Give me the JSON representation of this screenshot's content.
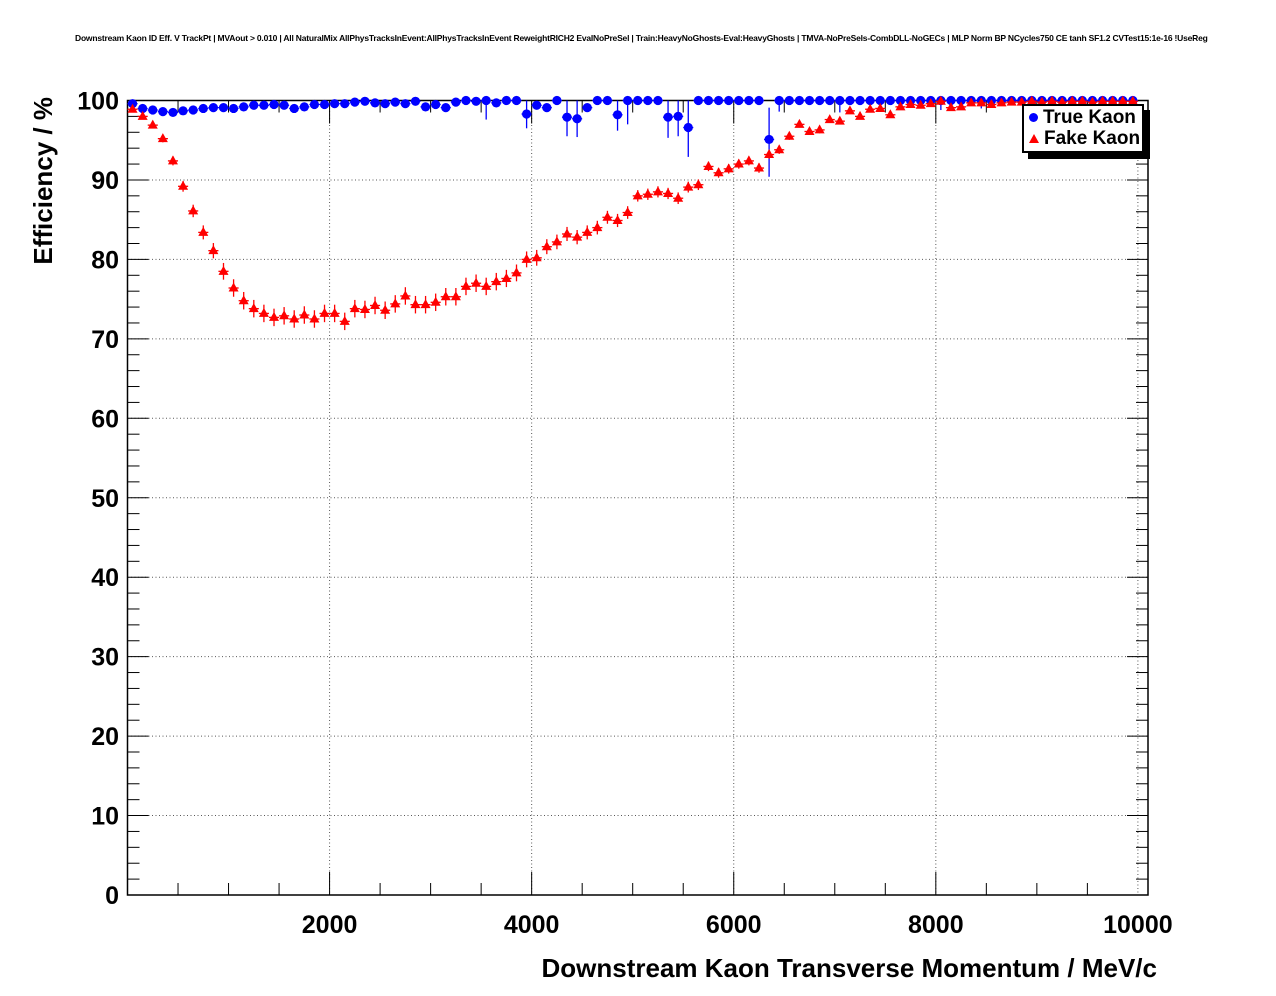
{
  "header": {
    "title": "Downstream Kaon ID Eff. V TrackPt | MVAout > 0.010 | All NaturalMix AllPhysTracksInEvent:AllPhysTracksInEvent ReweightRICH2 EvalNoPreSel | Train:HeavyNoGhosts-Eval:HeavyGhosts | TMVA-NoPreSels-CombDLL-NoGECs | MLP Norm BP NCycles750 CE tanh SF1.2 CVTest15:1e-16 !UseReg"
  },
  "chart_data": {
    "type": "scatter",
    "title": "",
    "xlabel": "Downstream Kaon Transverse Momentum / MeV/c",
    "ylabel": "Efficiency / %",
    "grid": true,
    "legend_position": "top-right",
    "x_axis": {
      "range": [
        0,
        10100
      ],
      "minor_step": 500,
      "major_ticks": [
        {
          "value": 2000,
          "label": "2000"
        },
        {
          "value": 4000,
          "label": "4000"
        },
        {
          "value": 6000,
          "label": "6000"
        },
        {
          "value": 8000,
          "label": "8000"
        },
        {
          "value": 10000,
          "label": "10000"
        }
      ]
    },
    "y_axis": {
      "range": [
        0,
        100
      ],
      "minor_step": 2,
      "major_ticks": [
        {
          "value": 0,
          "label": "0"
        },
        {
          "value": 10,
          "label": "10"
        },
        {
          "value": 20,
          "label": "20"
        },
        {
          "value": 30,
          "label": "30"
        },
        {
          "value": 40,
          "label": "40"
        },
        {
          "value": 50,
          "label": "50"
        },
        {
          "value": 60,
          "label": "60"
        },
        {
          "value": 70,
          "label": "70"
        },
        {
          "value": 80,
          "label": "80"
        },
        {
          "value": 90,
          "label": "90"
        },
        {
          "value": 100,
          "label": "100"
        }
      ]
    },
    "x_start": 50,
    "x_step": 100,
    "x_half_bin_width": 50,
    "series": [
      {
        "name": "True Kaon",
        "marker": "filled-circle",
        "color": "#0000ff",
        "err_model": {
          "type": "const",
          "value": 0.35
        },
        "values": [
          99.6,
          99.0,
          98.8,
          98.6,
          98.5,
          98.7,
          98.8,
          99.0,
          99.1,
          99.1,
          99.0,
          99.2,
          99.4,
          99.4,
          99.5,
          99.4,
          99.0,
          99.2,
          99.5,
          99.5,
          99.6,
          99.6,
          99.8,
          99.9,
          99.7,
          99.6,
          99.8,
          99.6,
          99.9,
          99.2,
          99.5,
          99.1,
          99.8,
          100.0,
          99.9,
          100.0,
          99.7,
          100.0,
          100.0,
          98.3,
          99.4,
          99.1,
          100.0,
          97.9,
          97.7,
          99.1,
          100.0,
          100.0,
          98.2,
          100.0,
          100.0,
          100.0,
          100.0,
          97.9,
          98.0,
          96.6,
          100.0,
          100.0,
          100.0,
          100.0,
          100.0,
          100.0,
          100.0,
          95.1,
          100.0,
          100.0,
          100.0,
          100.0,
          100.0,
          100.0,
          100.0,
          100.0,
          100.0,
          100.0,
          100.0,
          100.0,
          100.0,
          100.0,
          100.0,
          100.0,
          100.0,
          100.0,
          100.0,
          100.0,
          100.0,
          100.0,
          100.0,
          100.0,
          100.0,
          100.0,
          100.0,
          100.0,
          100.0,
          100.0,
          100.0,
          100.0,
          100.0,
          100.0,
          100.0,
          100.0
        ],
        "error_bars": [
          {
            "x": 3550,
            "lo": 97.6,
            "hi": 100
          },
          {
            "x": 3950,
            "lo": 96.5,
            "hi": 100
          },
          {
            "x": 4350,
            "lo": 95.5,
            "hi": 100
          },
          {
            "x": 4450,
            "lo": 95.4,
            "hi": 100
          },
          {
            "x": 4850,
            "lo": 96.2,
            "hi": 100
          },
          {
            "x": 4950,
            "lo": 97.0,
            "hi": 100
          },
          {
            "x": 5350,
            "lo": 95.3,
            "hi": 100
          },
          {
            "x": 5450,
            "lo": 95.5,
            "hi": 100
          },
          {
            "x": 5550,
            "lo": 92.9,
            "hi": 100
          },
          {
            "x": 6350,
            "lo": 90.4,
            "hi": 99.1
          },
          {
            "x": 6450,
            "lo": 98.6,
            "hi": 100
          },
          {
            "x": 7050,
            "lo": 98.5,
            "hi": 100
          },
          {
            "x": 8050,
            "lo": 98.8,
            "hi": 100
          },
          {
            "x": 8450,
            "lo": 99.0,
            "hi": 100
          }
        ]
      },
      {
        "name": "Fake Kaon",
        "marker": "filled-triangle",
        "color": "#ff0000",
        "err_model": {
          "type": "scaled",
          "base": 0.3,
          "slope": 0.035,
          "cap": 1.1
        },
        "values": [
          98.9,
          98.0,
          96.9,
          95.2,
          92.4,
          89.2,
          86.1,
          83.4,
          81.1,
          78.5,
          76.4,
          74.8,
          73.8,
          73.2,
          72.7,
          72.9,
          72.5,
          73.0,
          72.5,
          73.2,
          73.2,
          72.2,
          73.8,
          73.7,
          74.2,
          73.6,
          74.4,
          75.4,
          74.3,
          74.3,
          74.6,
          75.3,
          75.3,
          76.6,
          77.0,
          76.6,
          77.2,
          77.6,
          78.3,
          80.0,
          80.2,
          81.6,
          82.2,
          83.2,
          82.8,
          83.4,
          84.0,
          85.3,
          84.9,
          85.9,
          88.0,
          88.2,
          88.5,
          88.3,
          87.7,
          89.1,
          89.4,
          91.7,
          90.9,
          91.4,
          92.0,
          92.4,
          91.5,
          93.2,
          93.8,
          95.5,
          97.0,
          96.1,
          96.3,
          97.6,
          97.4,
          98.7,
          98.0,
          98.9,
          99.0,
          98.2,
          99.2,
          99.5,
          99.4,
          99.6,
          99.9,
          99.1,
          99.2,
          99.7,
          99.7,
          99.5,
          99.7,
          99.8,
          99.8,
          99.9,
          99.8,
          99.9,
          99.8,
          99.9,
          99.9,
          99.8,
          99.9,
          99.9,
          99.9,
          99.9
        ],
        "error_bars": []
      }
    ],
    "colors": {
      "frame": "#000000",
      "grid": "#000000",
      "text": "#000000"
    }
  },
  "legend": {
    "entries": [
      {
        "label": "True Kaon",
        "marker": "blue-filled-circle"
      },
      {
        "label": "Fake Kaon",
        "marker": "red-filled-triangle"
      }
    ]
  }
}
